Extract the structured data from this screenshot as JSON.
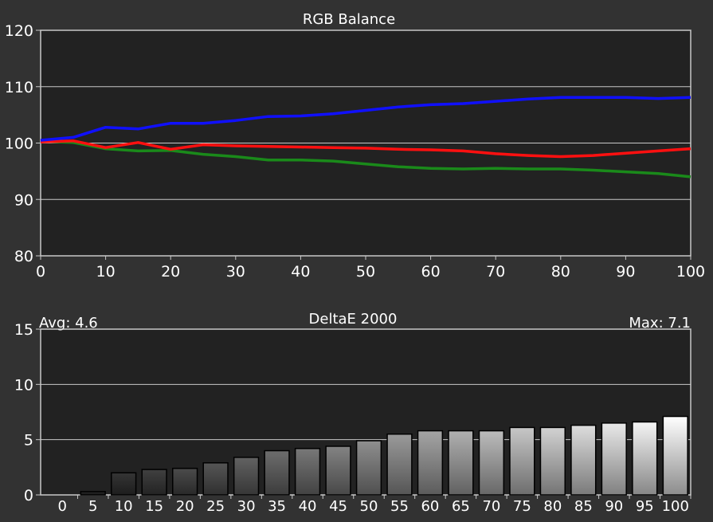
{
  "chart_data": [
    {
      "type": "line",
      "title": "RGB Balance",
      "xlabel": "",
      "ylabel": "",
      "xlim": [
        0,
        100
      ],
      "ylim": [
        80,
        120
      ],
      "x_ticks": [
        "0",
        "10",
        "20",
        "30",
        "40",
        "50",
        "60",
        "70",
        "80",
        "90",
        "100"
      ],
      "y_ticks": [
        "80",
        "90",
        "100",
        "110",
        "120"
      ],
      "grid": true,
      "x": [
        0,
        5,
        10,
        15,
        20,
        25,
        30,
        35,
        40,
        45,
        50,
        55,
        60,
        65,
        70,
        75,
        80,
        85,
        90,
        95,
        100
      ],
      "series": [
        {
          "color": "#1010ff",
          "values": [
            100.5,
            101.0,
            102.8,
            102.5,
            103.5,
            103.5,
            104.0,
            104.7,
            104.8,
            105.2,
            105.8,
            106.4,
            106.8,
            107.0,
            107.4,
            107.8,
            108.1,
            108.1,
            108.1,
            107.9,
            108.1
          ]
        },
        {
          "color": "#ff1010",
          "values": [
            100.2,
            100.4,
            99.2,
            100.1,
            98.9,
            99.7,
            99.5,
            99.4,
            99.3,
            99.2,
            99.1,
            98.9,
            98.8,
            98.6,
            98.1,
            97.8,
            97.6,
            97.8,
            98.2,
            98.6,
            99.0
          ]
        },
        {
          "color": "#1a8a1a",
          "values": [
            100.3,
            100.1,
            99.0,
            98.6,
            98.7,
            98.0,
            97.6,
            97.0,
            97.0,
            96.8,
            96.3,
            95.8,
            95.5,
            95.4,
            95.5,
            95.4,
            95.4,
            95.2,
            94.9,
            94.6,
            94.0
          ]
        }
      ]
    },
    {
      "type": "bar",
      "title": "DeltaE 2000",
      "avg_label": "Avg: 4.6",
      "max_label": "Max: 7.1",
      "xlabel": "",
      "ylabel": "",
      "ylim": [
        0,
        15
      ],
      "y_ticks": [
        "0",
        "5",
        "10",
        "15"
      ],
      "grid": true,
      "categories": [
        "0",
        "5",
        "10",
        "15",
        "20",
        "25",
        "30",
        "35",
        "40",
        "45",
        "50",
        "55",
        "60",
        "65",
        "70",
        "75",
        "80",
        "85",
        "90",
        "95",
        "100"
      ],
      "values": [
        0.0,
        0.3,
        2.0,
        2.3,
        2.4,
        2.9,
        3.4,
        4.0,
        4.2,
        4.4,
        4.9,
        5.5,
        5.8,
        5.8,
        5.8,
        6.1,
        6.1,
        6.3,
        6.5,
        6.6,
        7.1
      ]
    }
  ]
}
